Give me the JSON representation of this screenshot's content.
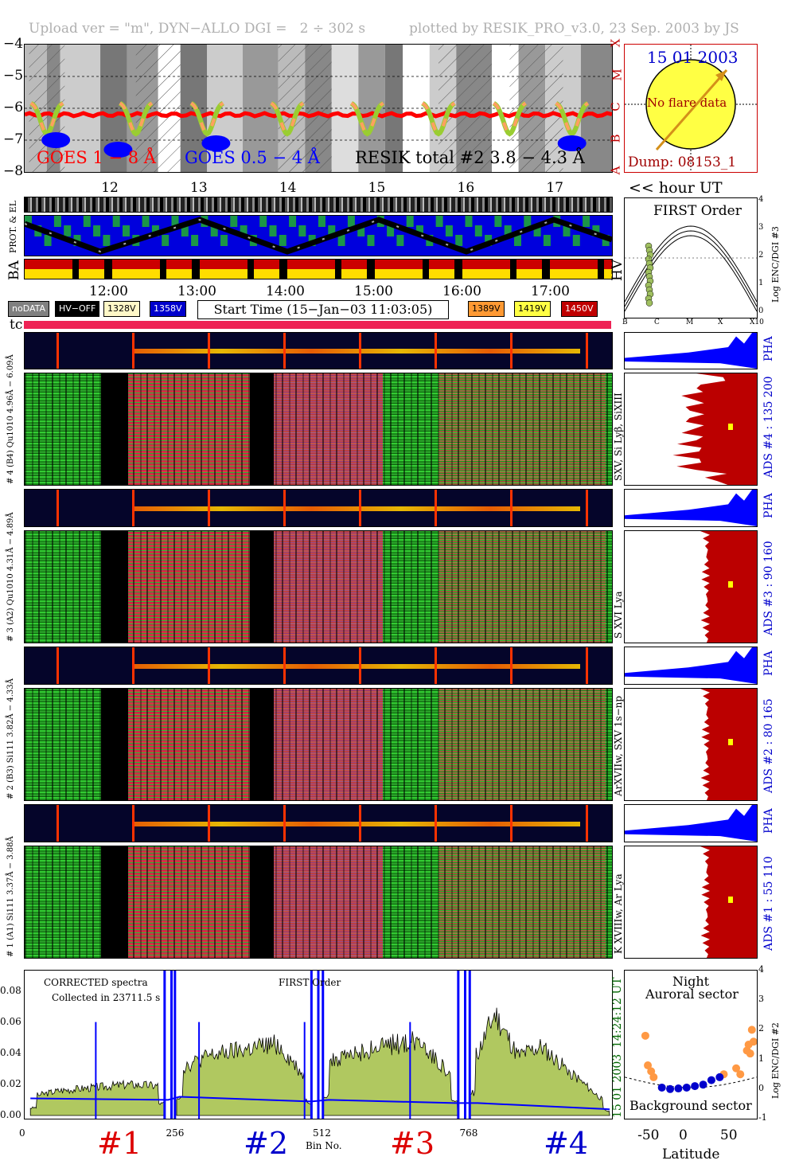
{
  "header": {
    "left": "Upload ver = \"m\", DYN−ALLO DGI =   2 ÷ 302 s",
    "right": "plotted by RESIK_PRO_v3.0, 23 Sep. 2003 by JS"
  },
  "goes_panel": {
    "y_ticks": [
      "−4",
      "−5",
      "−6",
      "−7",
      "−8"
    ],
    "flare_classes": [
      "X",
      "M",
      "C",
      "B",
      "A"
    ],
    "legend_goes18": "GOES 1 − 8 Å",
    "legend_goes054": "GOES 0.5 − 4 Å",
    "legend_resik": "RESIK total #2  3.8 − 4.3 Å",
    "hour_ticks": [
      "12",
      "13",
      "14",
      "15",
      "16",
      "17"
    ],
    "axis_title": "<< hour UT"
  },
  "sun_box": {
    "date": "15 01 2003",
    "note": "No flare data",
    "dump": "Dump: 08153_1"
  },
  "status": {
    "left_labels": [
      "BA",
      "PROT. & EL"
    ],
    "right_label": "HV",
    "time_ticks": [
      "12:00",
      "13:00",
      "14:00",
      "15:00",
      "16:00",
      "17:00"
    ]
  },
  "legend": {
    "nodata": "noDATA",
    "hvoff": "HV−OFF",
    "v1328": "1328V",
    "v1358": "1358V",
    "start_time": "Start Time (15−Jan−03 11:03:05)",
    "v1389": "1389V",
    "v1419": "1419V",
    "v1450": "1450V",
    "colors": {
      "nodata": "#808080",
      "hvoff": "#000000",
      "v1328": "#fff8c8",
      "v1358": "#0000cc",
      "v1389": "#ff9933",
      "v1419": "#ffff44",
      "v1450": "#c00000"
    }
  },
  "first_order": {
    "title": "FIRST Order",
    "ylabel": "Log ENC/DGI #3",
    "y_ticks": [
      "4",
      "3",
      "2",
      "1",
      "0"
    ],
    "x_ticks": [
      "B",
      "C",
      "M",
      "X",
      "X10"
    ]
  },
  "tc_label": "tc",
  "channels": [
    {
      "left": "# 4 (B4) Qu1010 4.96Å − 6.09Å",
      "right": "SXV, Si Lyβ, SiXIII",
      "ads": "ADS #4 :   135 200",
      "pha": "PHA"
    },
    {
      "left": "# 3 (A2) Qu1010 4.31Å − 4.89Å",
      "right": "S XVI Lya",
      "ads": "ADS #3 :    90 160",
      "pha": "PHA"
    },
    {
      "left": "# 2 (B3) Si111 3.82Å − 4.33Å",
      "right": "ArXVIIw, SXV 1s−np",
      "ads": "ADS #2 :    80 165",
      "pha": "PHA"
    },
    {
      "left": "# 1 (A1) Si111 3.37Å − 3.88Å",
      "right": "K XVIIIw, Ar Lya",
      "ads": "ADS #1 :    55 110",
      "pha": "PHA"
    }
  ],
  "spectrum": {
    "title1": "CORRECTED spectra",
    "title2": "Collected in 23711.5 s",
    "title3": "FIRST Order",
    "y_ticks": [
      "0.08",
      "0.06",
      "0.04",
      "0.02",
      "0.00"
    ],
    "x_ticks": [
      "0",
      "256",
      "512",
      "768"
    ],
    "xlabel": "Bin No.",
    "channel_marks": [
      "#1",
      "#2",
      "#3",
      "#4"
    ],
    "side_date": "15 01 2003",
    "side_time": "14:24:12 UT"
  },
  "chart_data": [
    {
      "type": "line",
      "title": "",
      "xlabel": "hour UT",
      "ylabel": "",
      "ylim": [
        -8,
        -4
      ],
      "xlim": [
        11.05,
        17.65
      ],
      "series": [
        {
          "name": "GOES 1 − 8 Å",
          "x": [
            11.05,
            12.0,
            13.0,
            14.0,
            15.0,
            16.0,
            17.0,
            17.65
          ],
          "values": [
            -6.25,
            -6.2,
            -6.2,
            -6.15,
            -6.25,
            -6.25,
            -6.2,
            -6.2
          ]
        },
        {
          "name": "GOES 0.5 − 4 Å",
          "x": [
            11.3,
            11.6,
            13.1,
            13.4,
            17.0,
            17.4
          ],
          "values": [
            -6.9,
            -7.1,
            -7.2,
            -7.0,
            -7.1,
            -7.2
          ]
        }
      ]
    },
    {
      "type": "line",
      "title": "",
      "xlabel": "Bin No.",
      "ylabel": "",
      "ylim": [
        0,
        0.09
      ],
      "x_ticks": [
        0,
        256,
        512,
        768
      ],
      "series": [
        {
          "name": "CORRECTED spectra",
          "x": [
            10,
            60,
            120,
            180,
            240,
            270,
            320,
            380,
            440,
            500,
            530,
            580,
            630,
            690,
            750,
            790,
            820,
            860,
            900,
            960,
            1020
          ],
          "values": [
            0.012,
            0.016,
            0.018,
            0.02,
            0.019,
            0.03,
            0.038,
            0.042,
            0.046,
            0.02,
            0.034,
            0.04,
            0.045,
            0.048,
            0.022,
            0.04,
            0.065,
            0.038,
            0.044,
            0.025,
            0.006
          ]
        },
        {
          "name": "background",
          "x": [
            10,
            250,
            270,
            500,
            530,
            750,
            790,
            1020
          ],
          "values": [
            0.011,
            0.01,
            0.012,
            0.009,
            0.01,
            0.008,
            0.008,
            0.004
          ]
        }
      ]
    },
    {
      "type": "scatter",
      "title": "",
      "xlabel": "Latitude",
      "ylabel": "Log ENC/DGI #2",
      "xlim": [
        -80,
        80
      ],
      "ylim": [
        -1,
        4
      ],
      "x_ticks": [
        -50,
        0,
        50
      ],
      "y_ticks": [
        4,
        3,
        2,
        1,
        0,
        -1
      ],
      "annotations": [
        "Night",
        "Auroral sector",
        "Background sector"
      ],
      "series": [
        {
          "name": "Auroral sector",
          "x": [
            -55,
            -52,
            -48,
            -45,
            40,
            55,
            60,
            68,
            70,
            72,
            74,
            76
          ],
          "values": [
            1.8,
            0.8,
            0.6,
            0.4,
            0.5,
            0.7,
            0.5,
            1.3,
            1.5,
            1.2,
            2.0,
            1.6
          ]
        },
        {
          "name": "Background sector",
          "x": [
            -35,
            -25,
            -15,
            -5,
            5,
            15,
            25,
            35
          ],
          "values": [
            0.05,
            0.0,
            0.02,
            0.05,
            0.1,
            0.15,
            0.3,
            0.4
          ]
        }
      ]
    }
  ]
}
